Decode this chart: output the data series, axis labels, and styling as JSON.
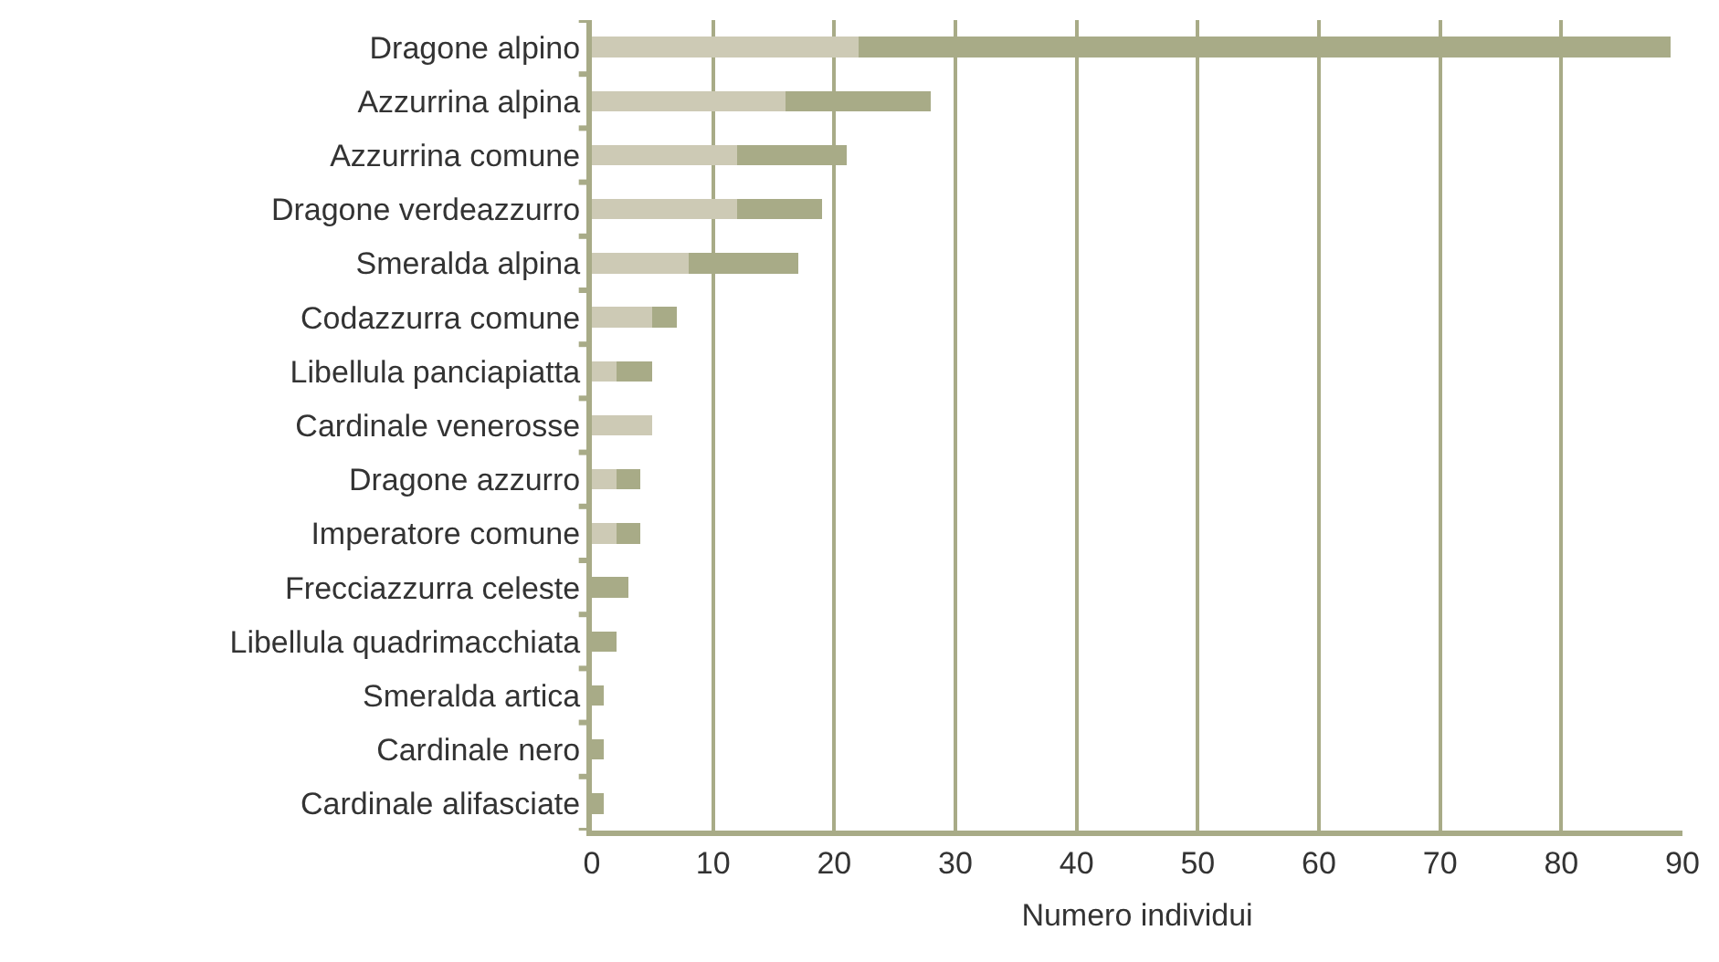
{
  "chart_data": {
    "type": "bar",
    "orientation": "horizontal",
    "stacked": true,
    "xlabel": "Numero individui",
    "categories": [
      "Dragone alpino",
      "Azzurrina alpina",
      "Azzurrina comune",
      "Dragone verdeazzurro",
      "Smeralda alpina",
      "Codazzurra comune",
      "Libellula panciapiatta",
      "Cardinale venerosse",
      "Dragone azzurro",
      "Imperatore comune",
      "Frecciazzurra celeste",
      "Libellula quadrimacchiata",
      "Smeralda artica",
      "Cardinale nero",
      "Cardinale alifasciate"
    ],
    "series": [
      {
        "color": "#cdcab5",
        "values": [
          22,
          16,
          12,
          12,
          8,
          5,
          2,
          5,
          2,
          2,
          0,
          0,
          0,
          0,
          0
        ]
      },
      {
        "color": "#a8ab87",
        "values": [
          67,
          12,
          9,
          7,
          9,
          2,
          3,
          0,
          2,
          2,
          3,
          2,
          1,
          1,
          1
        ]
      }
    ],
    "xlim": [
      0,
      90
    ],
    "xticks": [
      0,
      10,
      20,
      30,
      40,
      50,
      60,
      70,
      80,
      90
    ],
    "grid": "x"
  }
}
